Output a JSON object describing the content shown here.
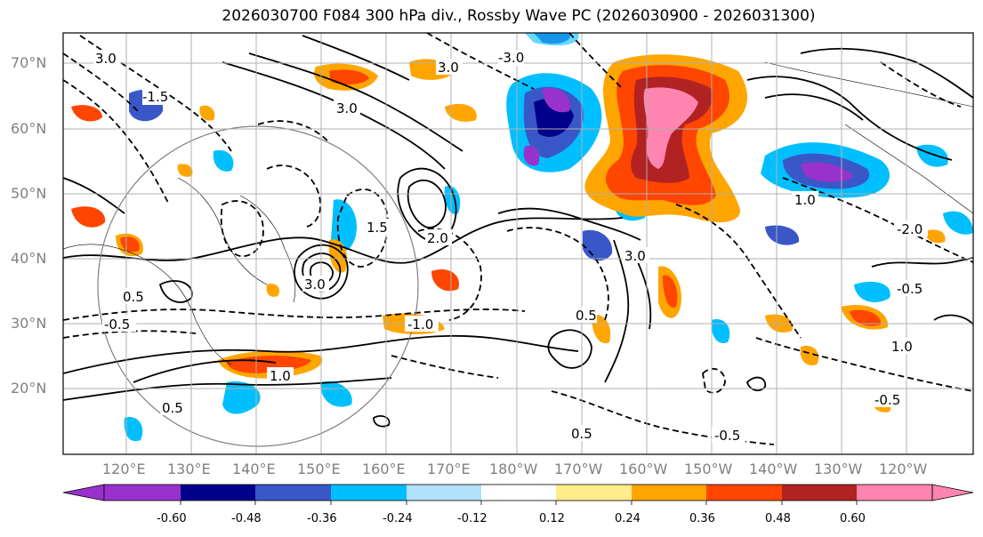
{
  "title": "2026030700 F084 300 hPa div., Rossby Wave PC (2026030900 - 2026031300)",
  "lat_labels": [
    "70°N",
    "60°N",
    "50°N",
    "40°N",
    "30°N",
    "20°N"
  ],
  "lon_labels": [
    "120°E",
    "130°E",
    "140°E",
    "150°E",
    "160°E",
    "170°E",
    "180°W",
    "170°W",
    "160°W",
    "150°W",
    "140°W",
    "130°W",
    "120°W"
  ],
  "colorbar": {
    "tick_labels": [
      "-0.60",
      "-0.48",
      "-0.36",
      "-0.24",
      "-0.12",
      "0.12",
      "0.24",
      "0.36",
      "0.48",
      "0.60"
    ],
    "colors": [
      "#9932cc",
      "#00008b",
      "#3a57c8",
      "#00bfff",
      "#b0e0fa",
      "#ffffff",
      "#ffec8b",
      "#ffa500",
      "#ff4500",
      "#b22222",
      "#ff85b0"
    ]
  },
  "contour_labels": [
    "3.0",
    "0.5",
    "1.0",
    "2.0",
    "1.5",
    "-0.5",
    "-1.0",
    "-2.0",
    "-3.0",
    "-1.5"
  ]
}
